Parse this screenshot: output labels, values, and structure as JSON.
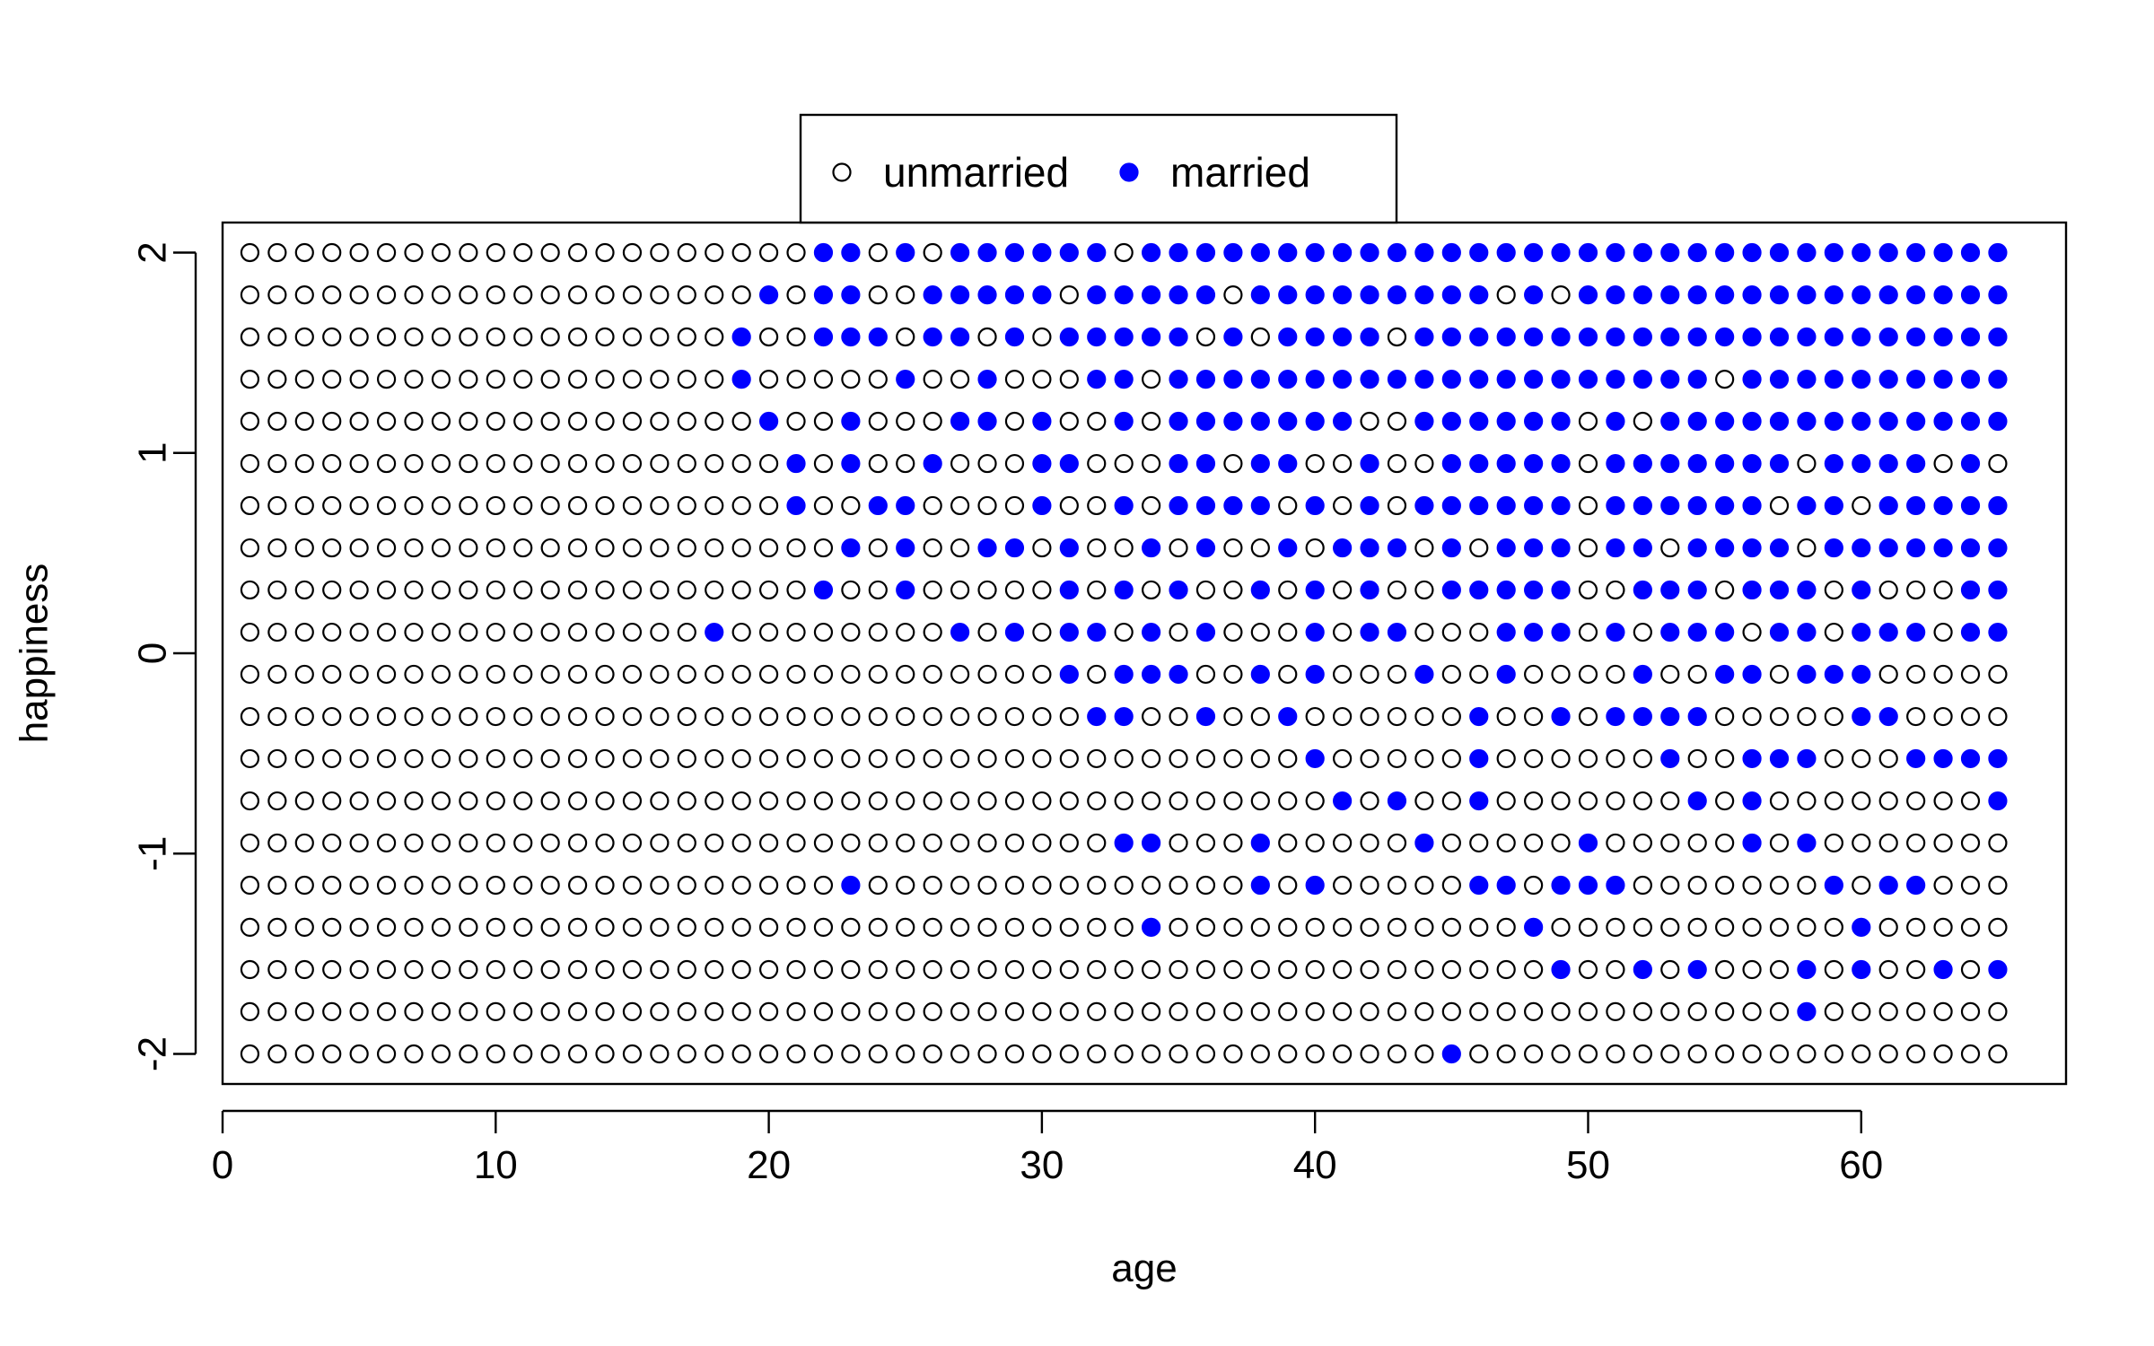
{
  "colors": {
    "married": "#0000ff",
    "unmarried_fill": "#ffffff",
    "stroke": "#000000"
  },
  "legend": {
    "placement": "top-center, outside plot",
    "items": [
      {
        "label": "unmarried",
        "marker": "open-circle"
      },
      {
        "label": "married",
        "marker": "filled-circle"
      }
    ]
  },
  "chart_data": {
    "type": "scatter",
    "title": "",
    "xlabel": "age",
    "ylabel": "happiness",
    "xlim": [
      0,
      67.5
    ],
    "ylim": [
      -2.15,
      2.15
    ],
    "x_ticks": [
      0,
      10,
      20,
      30,
      40,
      50,
      60
    ],
    "y_ticks": [
      -2,
      -1,
      0,
      1,
      2
    ],
    "grid": false,
    "x": {
      "start": 1,
      "end": 65,
      "step": 1
    },
    "y_levels": [
      -2.0,
      -1.789,
      -1.579,
      -1.368,
      -1.158,
      -0.947,
      -0.737,
      -0.526,
      -0.316,
      -0.105,
      0.105,
      0.316,
      0.526,
      0.737,
      0.947,
      1.158,
      1.368,
      1.579,
      1.789,
      2.0
    ],
    "series": [
      {
        "name": "unmarried",
        "marker": "open-circle",
        "note_points": "all (age, happiness) grid cells not listed as married"
      },
      {
        "name": "married",
        "marker": "filled-circle",
        "rows": [
          {
            "y": 2.0,
            "ages": [
              22,
              23,
              25,
              27,
              28,
              29,
              30,
              31,
              32,
              34,
              35,
              36,
              37,
              38,
              39,
              40,
              41,
              42,
              43,
              44,
              45,
              46,
              47,
              48,
              49,
              50,
              51,
              52,
              53,
              54,
              55,
              56,
              57,
              58,
              59,
              60,
              61,
              62,
              63,
              64,
              65
            ]
          },
          {
            "y": 1.789,
            "ages": [
              20,
              22,
              23,
              26,
              27,
              28,
              29,
              30,
              32,
              33,
              34,
              35,
              36,
              38,
              39,
              40,
              41,
              42,
              43,
              44,
              45,
              46,
              48,
              50,
              51,
              52,
              53,
              54,
              55,
              56,
              57,
              58,
              59,
              60,
              61,
              62,
              63,
              64,
              65
            ]
          },
          {
            "y": 1.579,
            "ages": [
              19,
              22,
              23,
              24,
              26,
              27,
              29,
              31,
              32,
              33,
              34,
              35,
              37,
              39,
              40,
              41,
              42,
              44,
              45,
              46,
              47,
              48,
              49,
              50,
              51,
              52,
              53,
              54,
              55,
              56,
              57,
              58,
              59,
              60,
              61,
              62,
              63,
              64,
              65
            ]
          },
          {
            "y": 1.368,
            "ages": [
              19,
              25,
              28,
              32,
              33,
              35,
              36,
              37,
              38,
              39,
              40,
              41,
              42,
              43,
              44,
              45,
              46,
              47,
              48,
              49,
              50,
              51,
              52,
              53,
              54,
              56,
              57,
              58,
              59,
              60,
              61,
              62,
              63,
              64,
              65
            ]
          },
          {
            "y": 1.158,
            "ages": [
              20,
              23,
              27,
              28,
              30,
              33,
              35,
              36,
              37,
              38,
              39,
              40,
              41,
              44,
              45,
              46,
              47,
              48,
              49,
              51,
              53,
              54,
              55,
              56,
              57,
              58,
              59,
              60,
              61,
              62,
              63,
              64,
              65
            ]
          },
          {
            "y": 0.947,
            "ages": [
              21,
              23,
              26,
              30,
              31,
              35,
              36,
              38,
              39,
              42,
              45,
              46,
              47,
              48,
              49,
              51,
              52,
              53,
              54,
              55,
              56,
              57,
              59,
              60,
              61,
              62,
              64
            ]
          },
          {
            "y": 0.737,
            "ages": [
              21,
              24,
              25,
              30,
              33,
              35,
              36,
              37,
              38,
              40,
              42,
              44,
              45,
              46,
              47,
              48,
              49,
              51,
              52,
              53,
              54,
              55,
              56,
              58,
              59,
              61,
              62,
              63,
              64,
              65
            ]
          },
          {
            "y": 0.526,
            "ages": [
              23,
              25,
              28,
              29,
              31,
              34,
              36,
              39,
              41,
              42,
              43,
              45,
              47,
              48,
              49,
              51,
              52,
              54,
              55,
              56,
              57,
              59,
              60,
              61,
              62,
              63,
              64,
              65
            ]
          },
          {
            "y": 0.316,
            "ages": [
              22,
              25,
              31,
              33,
              35,
              38,
              40,
              42,
              45,
              46,
              47,
              48,
              49,
              52,
              53,
              54,
              56,
              57,
              58,
              60,
              64,
              65
            ]
          },
          {
            "y": 0.105,
            "ages": [
              18,
              27,
              29,
              31,
              32,
              34,
              36,
              40,
              42,
              43,
              47,
              48,
              49,
              51,
              53,
              54,
              55,
              57,
              58,
              60,
              61,
              62,
              64,
              65
            ]
          },
          {
            "y": -0.105,
            "ages": [
              31,
              33,
              34,
              35,
              38,
              40,
              44,
              47,
              52,
              55,
              56,
              58,
              59,
              60
            ]
          },
          {
            "y": -0.316,
            "ages": [
              32,
              33,
              36,
              39,
              46,
              49,
              51,
              52,
              53,
              54,
              60,
              61
            ]
          },
          {
            "y": -0.526,
            "ages": [
              40,
              46,
              53,
              56,
              57,
              58,
              62,
              63,
              64,
              65
            ]
          },
          {
            "y": -0.737,
            "ages": [
              41,
              43,
              46,
              54,
              56,
              65
            ]
          },
          {
            "y": -0.947,
            "ages": [
              33,
              34,
              38,
              44,
              50,
              56,
              58
            ]
          },
          {
            "y": -1.158,
            "ages": [
              23,
              38,
              40,
              46,
              47,
              49,
              50,
              51,
              59,
              61,
              62
            ]
          },
          {
            "y": -1.368,
            "ages": [
              34,
              48,
              60
            ]
          },
          {
            "y": -1.579,
            "ages": [
              49,
              52,
              54,
              58,
              60,
              63,
              65
            ]
          },
          {
            "y": -1.789,
            "ages": [
              58
            ]
          },
          {
            "y": -2.0,
            "ages": [
              45
            ]
          }
        ]
      }
    ]
  }
}
